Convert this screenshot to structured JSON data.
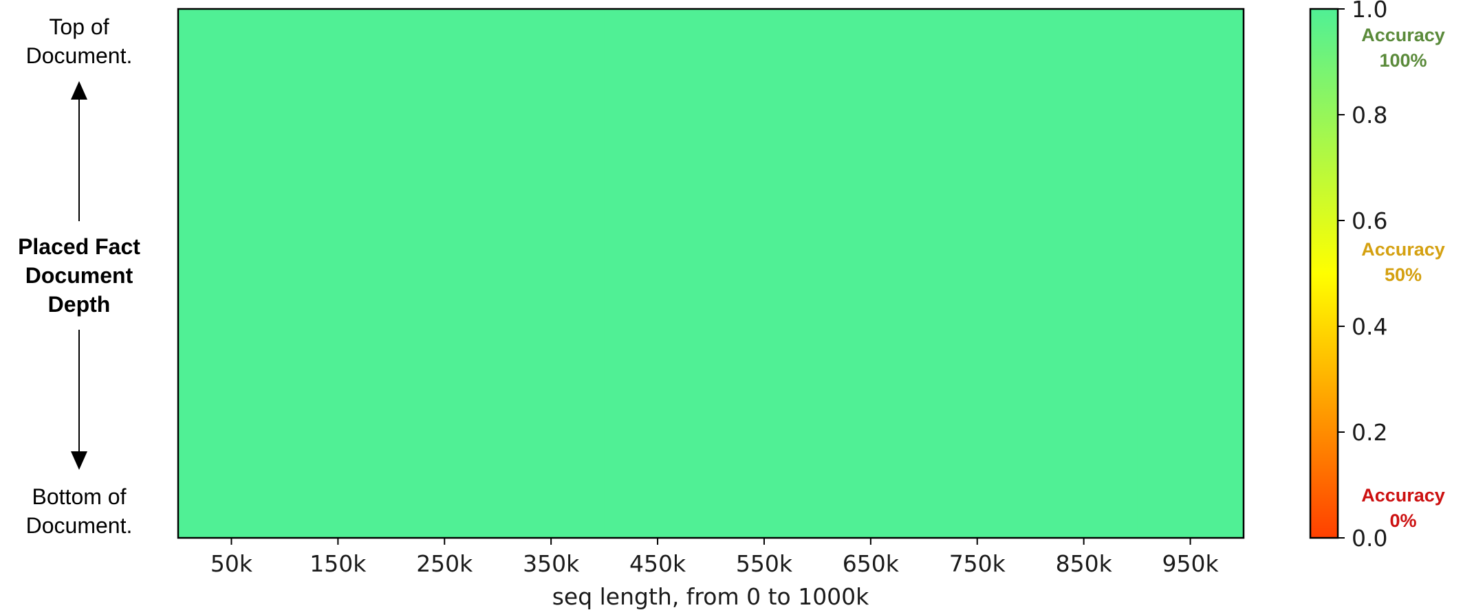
{
  "chart_data": {
    "type": "heatmap",
    "title": "",
    "xlabel": "seq length, from 0 to 1000k",
    "ylabel": "Placed Fact Document Depth",
    "x_categories": [
      "50k",
      "150k",
      "250k",
      "350k",
      "450k",
      "550k",
      "650k",
      "750k",
      "850k",
      "950k"
    ],
    "values": [
      [
        1.0,
        1.0,
        1.0,
        1.0,
        1.0,
        1.0,
        1.0,
        1.0,
        1.0,
        1.0
      ]
    ],
    "vlim": [
      0.0,
      1.0
    ],
    "cell_color": "#50f095",
    "colorbar": {
      "ticks": [
        {
          "value": 0.0,
          "label": "0.0"
        },
        {
          "value": 0.2,
          "label": "0.2"
        },
        {
          "value": 0.4,
          "label": "0.4"
        },
        {
          "value": 0.6,
          "label": "0.6"
        },
        {
          "value": 0.8,
          "label": "0.8"
        },
        {
          "value": 1.0,
          "label": "1.0"
        }
      ],
      "gradient": [
        {
          "value": 0.0,
          "color": "#ff4000"
        },
        {
          "value": 0.5,
          "color": "#ffff00"
        },
        {
          "value": 1.0,
          "color": "#50f095"
        }
      ],
      "annotations": [
        {
          "line1": "Accuracy",
          "line2": "100%",
          "value": 1.0,
          "color": "#5a8a3a"
        },
        {
          "line1": "Accuracy",
          "line2": "50%",
          "value": 0.5,
          "color": "#d4a010"
        },
        {
          "line1": "Accuracy",
          "line2": "0%",
          "value": 0.0,
          "color": "#cc1010"
        }
      ]
    },
    "side_labels": {
      "top_line1": "Top of",
      "top_line2": "Document.",
      "middle_line1": "Placed Fact",
      "middle_line2": "Document",
      "middle_line3": "Depth",
      "bottom_line1": "Bottom of",
      "bottom_line2": "Document."
    },
    "grid": false,
    "legend": "none"
  }
}
